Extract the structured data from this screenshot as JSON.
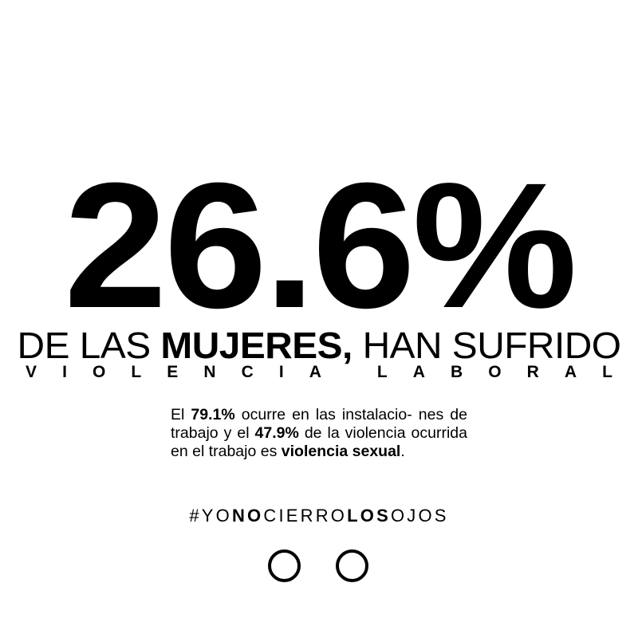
{
  "headline": {
    "value": "26.6%"
  },
  "subline": {
    "prefix": "DE LAS ",
    "bold": "MUJERES,",
    "suffix": " HAN SUFRIDO"
  },
  "tracked": {
    "text": "VIOLENCIA LABORAL"
  },
  "paragraph": {
    "p1": "El ",
    "b1": "79.1%",
    "p2": " ocurre en las instalacio- nes de trabajo y el ",
    "b2": "47.9%",
    "p3": " de la violencia ocurrida en el trabajo es ",
    "b3": "violencia sexual",
    "p4": "."
  },
  "hashtag": {
    "s1": "#YO",
    "b1": "NO",
    "s2": "CIERRO",
    "b2": "LOS",
    "s3": "OJOS"
  },
  "colors": {
    "background": "#ffffff",
    "text": "#000000"
  }
}
